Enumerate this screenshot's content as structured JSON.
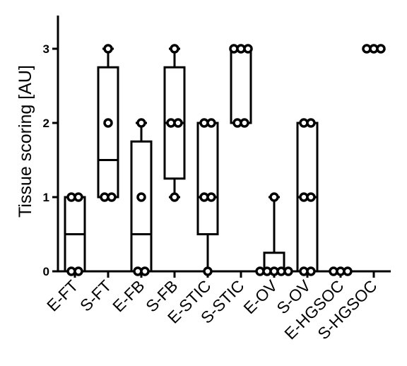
{
  "chart_data": {
    "type": "box",
    "ylabel": "Tissue scoring [AU]",
    "ylim": [
      0,
      3.3
    ],
    "yticks": [
      0,
      1,
      2,
      3
    ],
    "categories": [
      "E-FT",
      "S-FT",
      "E-FB",
      "S-FB",
      "E-STIC",
      "S-STIC",
      "E-OV",
      "S-OV",
      "E-HGSOC",
      "S-HGSOC"
    ],
    "boxes": [
      {
        "category": "E-FT",
        "min": 0,
        "q1": 0,
        "median": 0.5,
        "q3": 1,
        "max": 1,
        "points": [
          0,
          0,
          1,
          1
        ]
      },
      {
        "category": "S-FT",
        "min": 1,
        "q1": 1,
        "median": 1.5,
        "q3": 2.75,
        "max": 3,
        "points": [
          1,
          1,
          2,
          3
        ]
      },
      {
        "category": "E-FB",
        "min": 0,
        "q1": 0,
        "median": 0.5,
        "q3": 1.75,
        "max": 2,
        "points": [
          0,
          0,
          1,
          2
        ]
      },
      {
        "category": "S-FB",
        "min": 1,
        "q1": 1.25,
        "median": 2,
        "q3": 2.75,
        "max": 3,
        "points": [
          1,
          2,
          2,
          3
        ]
      },
      {
        "category": "E-STIC",
        "min": 0,
        "q1": 0.5,
        "median": 1,
        "q3": 2,
        "max": 2,
        "points": [
          0,
          1,
          1,
          2,
          2
        ]
      },
      {
        "category": "S-STIC",
        "min": 2,
        "q1": 2,
        "median": 3,
        "q3": 3,
        "max": 3,
        "points": [
          2,
          2,
          3,
          3,
          3
        ]
      },
      {
        "category": "E-OV",
        "min": 0,
        "q1": 0,
        "median": 0,
        "q3": 0.25,
        "max": 1,
        "points": [
          0,
          0,
          0,
          0,
          0,
          1
        ]
      },
      {
        "category": "S-OV",
        "min": 0,
        "q1": 0,
        "median": 1,
        "q3": 2,
        "max": 2,
        "points": [
          0,
          0,
          1,
          1,
          2,
          2
        ]
      },
      {
        "category": "E-HGSOC",
        "min": 0,
        "q1": 0,
        "median": 0,
        "q3": 0,
        "max": 0,
        "points": [
          0,
          0,
          0
        ]
      },
      {
        "category": "S-HGSOC",
        "min": 3,
        "q1": 3,
        "median": 3,
        "q3": 3,
        "max": 3,
        "points": [
          3,
          3,
          3
        ]
      }
    ]
  }
}
